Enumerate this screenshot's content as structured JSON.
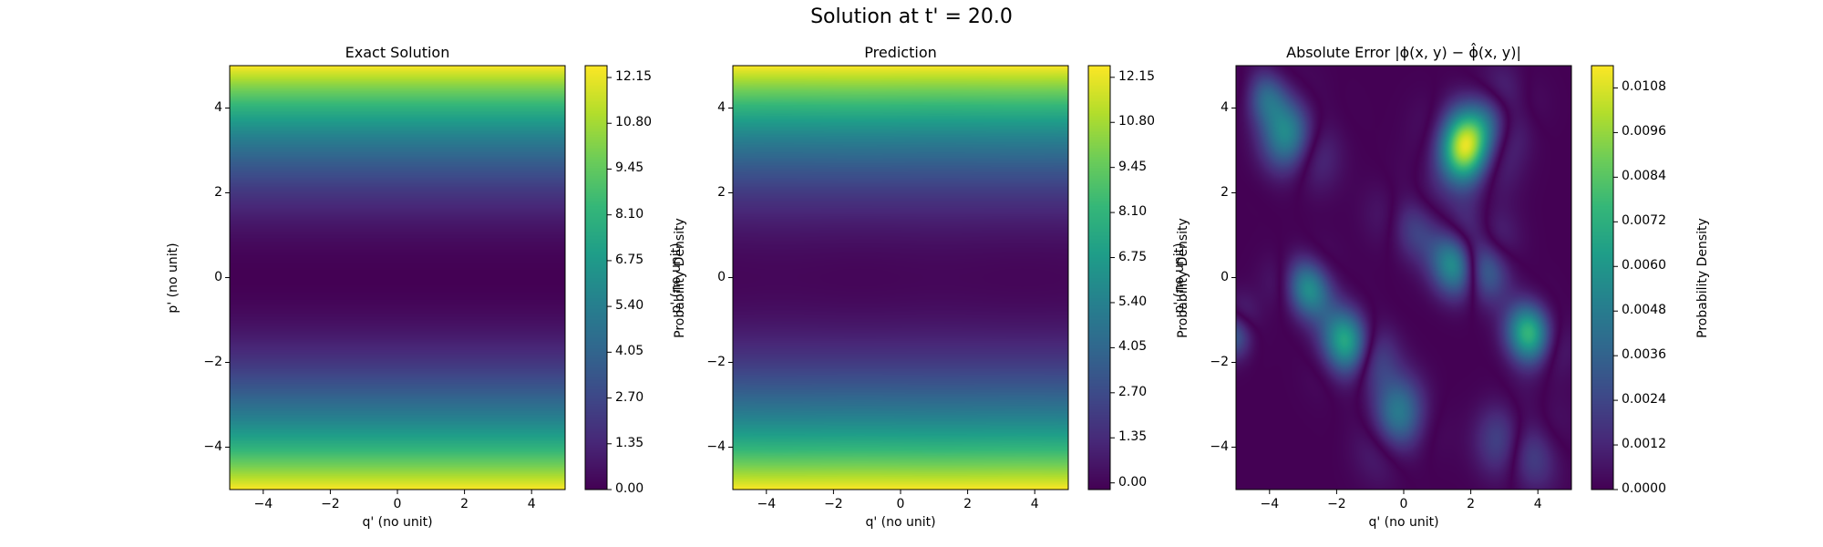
{
  "figure": {
    "title": "Solution at t' = 20.0"
  },
  "chart_data": [
    {
      "type": "heatmap",
      "title": "Exact Solution",
      "xlabel": "q' (no unit)",
      "ylabel": "p' (no unit)",
      "xlim": [
        -5,
        5
      ],
      "ylim": [
        -5,
        5
      ],
      "xticks": [
        "−4",
        "−2",
        "0",
        "2",
        "4"
      ],
      "xtick_values": [
        -4,
        -2,
        0,
        2,
        4
      ],
      "yticks": [
        "4",
        "2",
        "0",
        "−2",
        "−4"
      ],
      "ytick_values": [
        4,
        2,
        0,
        -2,
        -4
      ],
      "field": "p'^2 / 2 (varies along p' only)",
      "colormap": "viridis",
      "colorbar": {
        "label": "Probability Density",
        "range": [
          0.0,
          12.5
        ],
        "ticks": [
          "0.00",
          "1.35",
          "2.70",
          "4.05",
          "5.40",
          "6.75",
          "8.10",
          "9.45",
          "10.80",
          "12.15"
        ],
        "tick_values": [
          0.0,
          1.35,
          2.7,
          4.05,
          5.4,
          6.75,
          8.1,
          9.45,
          10.8,
          12.15
        ]
      }
    },
    {
      "type": "heatmap",
      "title": "Prediction",
      "xlabel": "q' (no unit)",
      "ylabel": "p' (no unit)",
      "xlim": [
        -5,
        5
      ],
      "ylim": [
        -5,
        5
      ],
      "xticks": [
        "−4",
        "−2",
        "0",
        "2",
        "4"
      ],
      "xtick_values": [
        -4,
        -2,
        0,
        2,
        4
      ],
      "yticks": [
        "4",
        "2",
        "0",
        "−2",
        "−4"
      ],
      "ytick_values": [
        4,
        2,
        0,
        -2,
        -4
      ],
      "field": "p'^2 / 2 (varies along p' only)",
      "colormap": "viridis",
      "colorbar": {
        "label": "Probability Density",
        "range": [
          -0.2,
          12.5
        ],
        "ticks": [
          "0.00",
          "1.35",
          "2.70",
          "4.05",
          "5.40",
          "6.75",
          "8.10",
          "9.45",
          "10.80",
          "12.15"
        ],
        "tick_values": [
          0.0,
          1.35,
          2.7,
          4.05,
          5.4,
          6.75,
          8.1,
          9.45,
          10.8,
          12.15
        ]
      }
    },
    {
      "type": "heatmap",
      "title": "Absolute Error |ϕ(x, y) − ϕ̂(x, y)|",
      "xlabel": "q' (no unit)",
      "ylabel": "p' (no unit)",
      "xlim": [
        -5,
        5
      ],
      "ylim": [
        -5,
        5
      ],
      "xticks": [
        "−4",
        "−2",
        "0",
        "2",
        "4"
      ],
      "xtick_values": [
        -4,
        -2,
        0,
        2,
        4
      ],
      "yticks": [
        "4",
        "2",
        "0",
        "−2",
        "−4"
      ],
      "ytick_values": [
        4,
        2,
        0,
        -2,
        -4
      ],
      "field": "oscillatory absolute error, peak near (2, 0.5)",
      "colormap": "viridis",
      "colorbar": {
        "label": "Probability Density",
        "range": [
          0.0,
          0.0114
        ],
        "ticks": [
          "0.0000",
          "0.0012",
          "0.0024",
          "0.0036",
          "0.0048",
          "0.0060",
          "0.0072",
          "0.0084",
          "0.0096",
          "0.0108"
        ],
        "tick_values": [
          0.0,
          0.0012,
          0.0024,
          0.0036,
          0.0048,
          0.006,
          0.0072,
          0.0084,
          0.0096,
          0.0108
        ]
      }
    }
  ]
}
